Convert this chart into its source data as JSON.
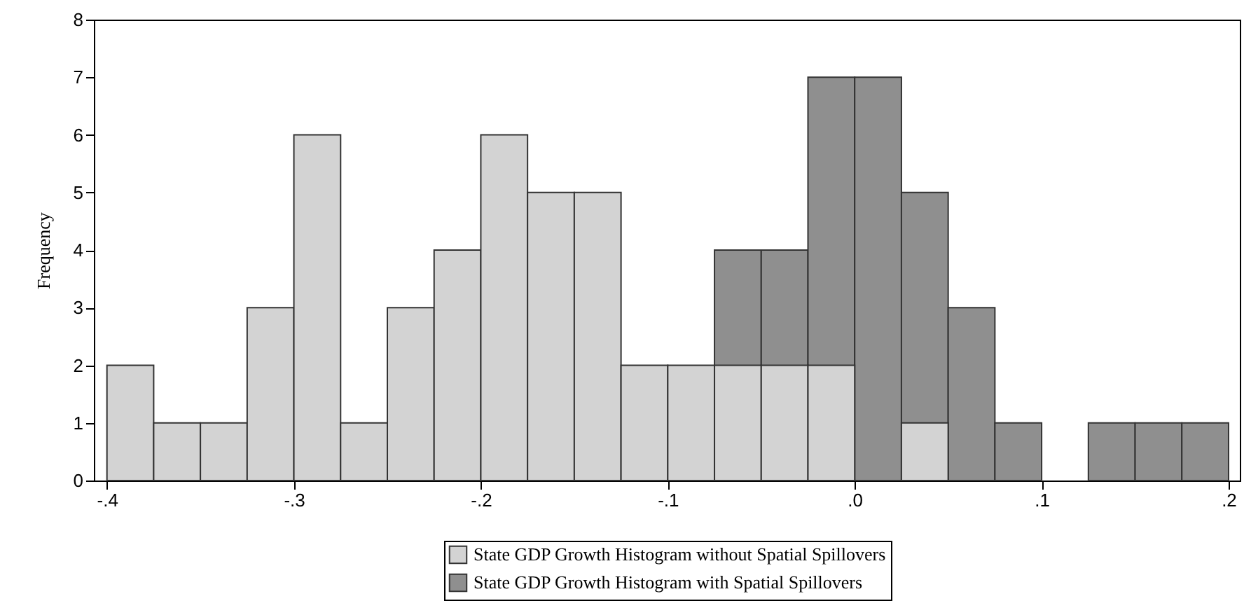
{
  "chart_data": {
    "type": "histogram",
    "ylabel": "Frequency",
    "bins": [
      -0.4,
      -0.375,
      -0.35,
      -0.325,
      -0.3,
      -0.275,
      -0.25,
      -0.225,
      -0.2,
      -0.175,
      -0.15,
      -0.125,
      -0.1,
      -0.075,
      -0.05,
      -0.025,
      0,
      0.025,
      0.05,
      0.075,
      0.1,
      0.125,
      0.15,
      0.175,
      0.2
    ],
    "series": [
      {
        "name": "State GDP Growth Histogram without Spatial Spillovers",
        "color": "#d3d3d3",
        "values": [
          2,
          1,
          1,
          3,
          6,
          1,
          3,
          4,
          6,
          5,
          5,
          2,
          2,
          2,
          2,
          2,
          0,
          1,
          0,
          0,
          0,
          0,
          0,
          0
        ]
      },
      {
        "name": "State GDP Growth Histogram with Spatial Spillovers",
        "color": "#8f8f8f",
        "values": [
          0,
          0,
          0,
          0,
          0,
          0,
          0,
          0,
          0,
          0,
          0,
          0,
          0,
          4,
          4,
          7,
          7,
          5,
          3,
          1,
          0,
          1,
          1,
          1
        ]
      }
    ],
    "xlim": [
      -0.407,
      0.206
    ],
    "xticks": [
      {
        "value": -0.4,
        "label": "-.4"
      },
      {
        "value": -0.3,
        "label": "-.3"
      },
      {
        "value": -0.2,
        "label": "-.2"
      },
      {
        "value": -0.1,
        "label": "-.1"
      },
      {
        "value": 0,
        "label": ".0"
      },
      {
        "value": 0.1,
        "label": ".1"
      },
      {
        "value": 0.2,
        "label": ".2"
      }
    ],
    "ylim": [
      0,
      8
    ],
    "yticks": [
      0,
      1,
      2,
      3,
      4,
      5,
      6,
      7,
      8
    ],
    "grid": false,
    "legend": "bottom"
  }
}
